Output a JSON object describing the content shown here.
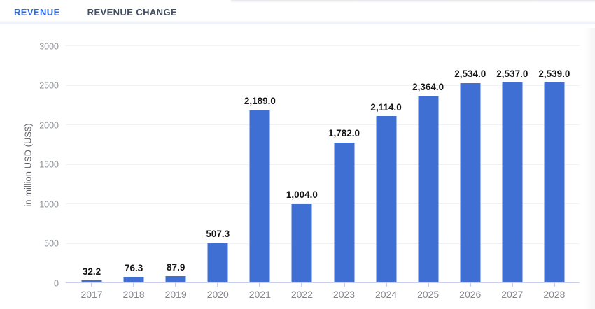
{
  "tabs": [
    {
      "label": "REVENUE",
      "active": true
    },
    {
      "label": "REVENUE CHANGE",
      "active": false
    }
  ],
  "colors": {
    "bar": "#3f6fd3",
    "active_tab": "#2c69e0",
    "inactive_tab": "#414e63",
    "gridline": "#f1f2f6",
    "axis_line": "#c9cfec",
    "tick_label": "#85878f",
    "value_label": "#141414"
  },
  "chart_data": {
    "type": "bar",
    "title": "",
    "categories": [
      "2017",
      "2018",
      "2019",
      "2020",
      "2021",
      "2022",
      "2023",
      "2024",
      "2025",
      "2026",
      "2027",
      "2028"
    ],
    "values": [
      32.2,
      76.3,
      87.9,
      507.3,
      2189.0,
      1004.0,
      1782.0,
      2114.0,
      2364.0,
      2534.0,
      2537.0,
      2539.0
    ],
    "value_labels": [
      "32.2",
      "76.3",
      "87.9",
      "507.3",
      "2,189.0",
      "1,004.0",
      "1,782.0",
      "2,114.0",
      "2,364.0",
      "2,534.0",
      "2,537.0",
      "2,539.0"
    ],
    "xlabel": "",
    "ylabel": "in million USD (US$)",
    "ylim": [
      0,
      3000
    ],
    "yticks": [
      0,
      500,
      1000,
      1500,
      2000,
      2500,
      3000
    ],
    "grid": true,
    "legend": false
  }
}
